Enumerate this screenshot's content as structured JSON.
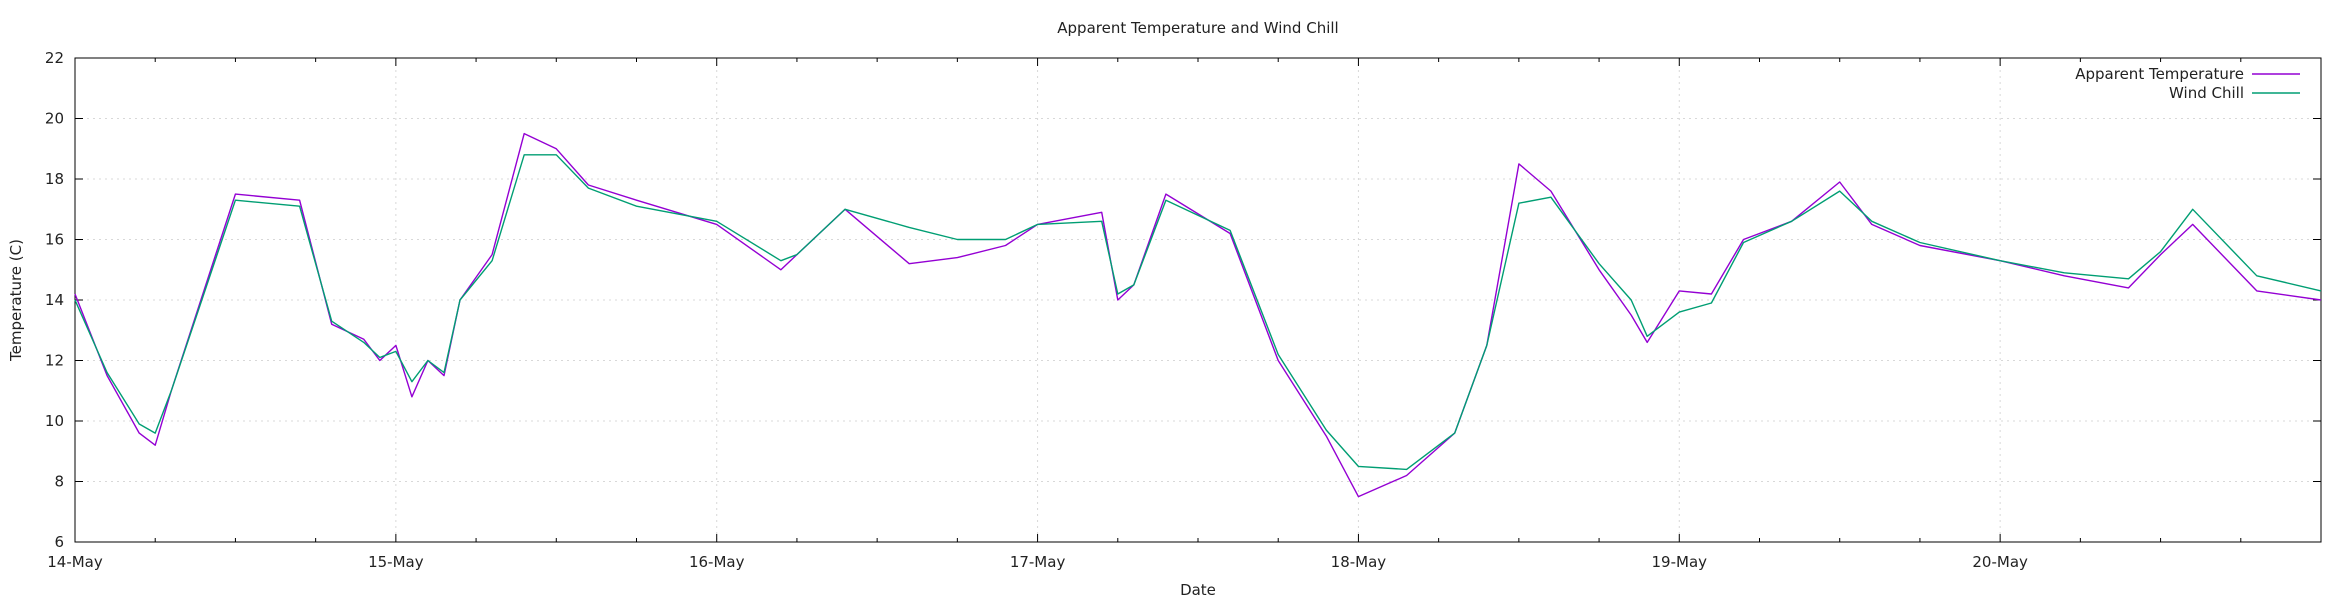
{
  "chart_data": {
    "type": "line",
    "title": "Apparent Temperature and Wind Chill",
    "xlabel": "Date",
    "ylabel": "Temperature (C)",
    "ylim": [
      6,
      22
    ],
    "yticks": [
      6,
      8,
      10,
      12,
      14,
      16,
      18,
      20,
      22
    ],
    "xlim": [
      0,
      7
    ],
    "xticks": [
      {
        "x": 0,
        "label": "14-May"
      },
      {
        "x": 1,
        "label": "15-May"
      },
      {
        "x": 2,
        "label": "16-May"
      },
      {
        "x": 3,
        "label": "17-May"
      },
      {
        "x": 4,
        "label": "18-May"
      },
      {
        "x": 5,
        "label": "19-May"
      },
      {
        "x": 6,
        "label": "20-May"
      }
    ],
    "grid": true,
    "legend_position": "top-right",
    "series": [
      {
        "name": "Apparent Temperature",
        "color": "#9400d3",
        "x": [
          0,
          0.1,
          0.2,
          0.25,
          0.3,
          0.5,
          0.7,
          0.8,
          0.9,
          0.95,
          1.0,
          1.05,
          1.1,
          1.15,
          1.2,
          1.3,
          1.4,
          1.5,
          1.6,
          1.75,
          2.0,
          2.2,
          2.25,
          2.4,
          2.6,
          2.75,
          2.9,
          3.0,
          3.2,
          3.25,
          3.3,
          3.4,
          3.6,
          3.75,
          3.9,
          4.0,
          4.15,
          4.3,
          4.4,
          4.5,
          4.6,
          4.75,
          4.85,
          4.9,
          5.0,
          5.1,
          5.2,
          5.35,
          5.5,
          5.6,
          5.75,
          6.0,
          6.2,
          6.4,
          6.5,
          6.6,
          6.8,
          7.0
        ],
        "y": [
          14.2,
          11.5,
          9.6,
          9.2,
          11.0,
          17.5,
          17.3,
          13.2,
          12.7,
          12.0,
          12.5,
          10.8,
          12.0,
          11.5,
          14.0,
          15.5,
          19.5,
          19.0,
          17.8,
          17.3,
          16.5,
          15.0,
          15.5,
          17.0,
          15.2,
          15.4,
          15.8,
          16.5,
          16.9,
          14.0,
          14.5,
          17.5,
          16.2,
          12.0,
          9.5,
          7.5,
          8.2,
          9.6,
          12.5,
          18.5,
          17.6,
          15.0,
          13.5,
          12.6,
          14.3,
          14.2,
          16.0,
          16.6,
          17.9,
          16.5,
          15.8,
          15.3,
          14.8,
          14.4,
          15.5,
          16.5,
          14.3,
          14.0
        ]
      },
      {
        "name": "Wind Chill",
        "color": "#009e73",
        "x": [
          0,
          0.1,
          0.2,
          0.25,
          0.3,
          0.5,
          0.7,
          0.8,
          0.9,
          0.95,
          1.0,
          1.05,
          1.1,
          1.15,
          1.2,
          1.3,
          1.4,
          1.5,
          1.6,
          1.75,
          2.0,
          2.2,
          2.25,
          2.4,
          2.6,
          2.75,
          2.9,
          3.0,
          3.2,
          3.25,
          3.3,
          3.4,
          3.6,
          3.75,
          3.9,
          4.0,
          4.15,
          4.3,
          4.4,
          4.5,
          4.6,
          4.75,
          4.85,
          4.9,
          5.0,
          5.1,
          5.2,
          5.35,
          5.5,
          5.6,
          5.75,
          6.0,
          6.2,
          6.4,
          6.5,
          6.6,
          6.8,
          7.0
        ],
        "y": [
          14.0,
          11.6,
          9.9,
          9.6,
          11.0,
          17.3,
          17.1,
          13.3,
          12.6,
          12.1,
          12.3,
          11.3,
          12.0,
          11.6,
          14.0,
          15.3,
          18.8,
          18.8,
          17.7,
          17.1,
          16.6,
          15.3,
          15.5,
          17.0,
          16.4,
          16.0,
          16.0,
          16.5,
          16.6,
          14.2,
          14.5,
          17.3,
          16.3,
          12.2,
          9.7,
          8.5,
          8.4,
          9.6,
          12.5,
          17.2,
          17.4,
          15.2,
          14.0,
          12.8,
          13.6,
          13.9,
          15.9,
          16.6,
          17.6,
          16.6,
          15.9,
          15.3,
          14.9,
          14.7,
          15.6,
          17.0,
          14.8,
          14.3
        ]
      }
    ]
  }
}
